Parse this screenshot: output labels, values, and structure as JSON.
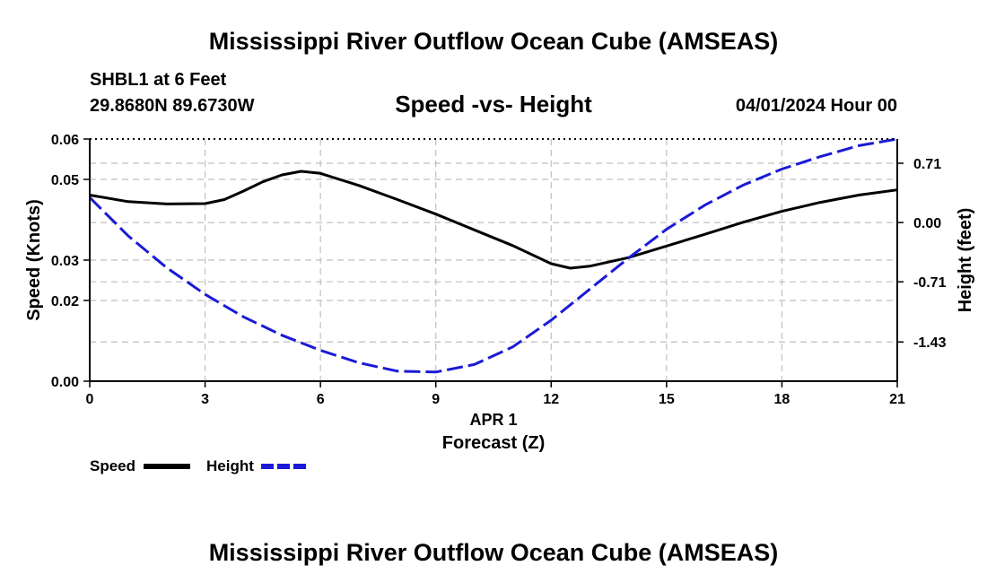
{
  "page": {
    "title": "Mississippi River Outflow Ocean Cube (AMSEAS)",
    "station": "SHBL1 at 6 Feet",
    "coords": "29.8680N  89.6730W",
    "datetime": "04/01/2024 Hour 00",
    "footer_title": "Mississippi River Outflow Ocean Cube (AMSEAS)"
  },
  "legend": {
    "speed_label": "Speed",
    "height_label": "Height"
  },
  "colors": {
    "speed": "#000000",
    "height": "#1a1ad6",
    "grid": "#bfbfbf"
  },
  "chart_data": {
    "type": "line",
    "title": "Speed -vs- Height",
    "xlabel": "Forecast (Z)",
    "xsublabel": "APR 1",
    "ylabel": "Speed (Knots)",
    "y2label": "Height (feet)",
    "xlim": [
      0,
      21
    ],
    "ylim": [
      0.0,
      0.06
    ],
    "y2lim": [
      -1.9,
      1.0
    ],
    "xticks": [
      0,
      3,
      6,
      9,
      12,
      15,
      18,
      21
    ],
    "xtick_labels": [
      "0",
      "3",
      "6",
      "9",
      "12",
      "15",
      "18",
      "21"
    ],
    "yticks": [
      0.0,
      0.02,
      0.03,
      0.05,
      0.06
    ],
    "ytick_labels": [
      "0.00",
      "0.02",
      "0.03",
      "0.05",
      "0.06"
    ],
    "y2ticks": [
      0.71,
      0.0,
      -0.71,
      -1.43
    ],
    "y2tick_labels": [
      "0.71",
      "0.00",
      "-0.71",
      "-1.43"
    ],
    "series": [
      {
        "name": "Speed",
        "axis": "left",
        "style": "solid",
        "x": [
          0,
          1,
          2,
          3,
          3.5,
          4,
          4.5,
          5,
          5.5,
          6,
          7,
          8,
          9,
          10,
          11,
          12,
          12.5,
          13,
          14,
          15,
          16,
          17,
          18,
          19,
          20,
          21
        ],
        "y": [
          0.0461,
          0.0445,
          0.0439,
          0.044,
          0.045,
          0.0471,
          0.0494,
          0.0511,
          0.052,
          0.0515,
          0.0485,
          0.045,
          0.0414,
          0.0375,
          0.0336,
          0.0291,
          0.028,
          0.0285,
          0.0306,
          0.0335,
          0.0364,
          0.0394,
          0.0421,
          0.0443,
          0.0461,
          0.0474
        ]
      },
      {
        "name": "Height",
        "axis": "right",
        "style": "dashed",
        "x": [
          0,
          1,
          2,
          3,
          4,
          5,
          6,
          7,
          8,
          9,
          10,
          11,
          12,
          13,
          14,
          15,
          16,
          17,
          18,
          19,
          20,
          21
        ],
        "y": [
          0.3,
          -0.16,
          -0.54,
          -0.86,
          -1.13,
          -1.35,
          -1.53,
          -1.68,
          -1.78,
          -1.79,
          -1.7,
          -1.49,
          -1.17,
          -0.8,
          -0.43,
          -0.08,
          0.21,
          0.45,
          0.64,
          0.79,
          0.92,
          1.0
        ]
      }
    ]
  }
}
